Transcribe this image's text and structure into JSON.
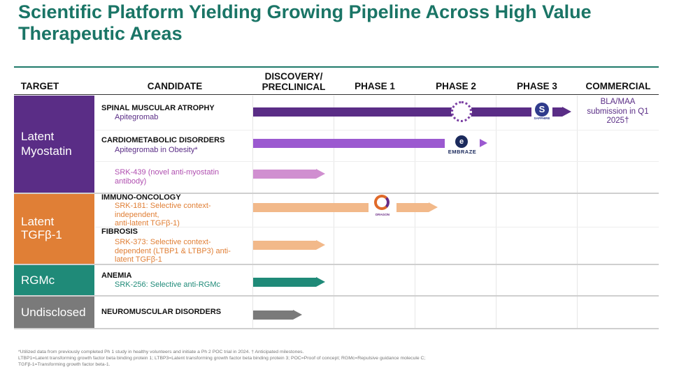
{
  "title": "Scientific Platform Yielding Growing Pipeline Across High Value Therapeutic Areas",
  "headers": {
    "target": "TARGET",
    "candidate": "CANDIDATE",
    "discovery_line1": "DISCOVERY/",
    "discovery_line2": "PRECLINICAL",
    "phase1": "PHASE 1",
    "phase2": "PHASE 2",
    "phase3": "PHASE 3",
    "commercial": "COMMERCIAL"
  },
  "targets": {
    "myostatin_line1": "Latent",
    "myostatin_line2": "Myostatin",
    "tgfb_line1": "Latent",
    "tgfb_line2": "TGFβ-1",
    "rgmc": "RGMc",
    "undisclosed": "Undisclosed"
  },
  "rows": {
    "sma": {
      "disease": "SPINAL MUSCULAR ATROPHY",
      "candidate": "Apitegromab"
    },
    "cardio": {
      "disease": "CARDIOMETABOLIC DISORDERS",
      "candidate": "Apitegromab in Obesity*"
    },
    "srk439": {
      "line1": "SRK-439 (novel anti-myostatin",
      "line2": "antibody)"
    },
    "immuno": {
      "disease": "IMMUNO-ONCOLOGY",
      "line1": "SRK-181:  Selective context-",
      "line2": "independent,",
      "line3": "anti-latent TGFβ-1)"
    },
    "fibrosis": {
      "disease": "FIBROSIS",
      "line1": "SRK-373: Selective context-",
      "line2": "dependent (LTBP1 & LTBP3) anti-",
      "line3": "latent TGFβ-1"
    },
    "anemia": {
      "disease": "ANEMIA",
      "candidate": "SRK-256: Selective anti-RGMc"
    },
    "neuro": {
      "disease": "NEUROMUSCULAR DISORDERS"
    }
  },
  "commercial": {
    "line1": "BLA/MAA",
    "line2": "submission in Q1",
    "line3": "2025†"
  },
  "badges": {
    "sapphire": "SAPPHIRE",
    "embraze": "EMBRAZE",
    "dragon": "DRAGON"
  },
  "footnote": {
    "line1": "*Utilized data from previously completed Ph 1 study in healthy volunteers and initiate a Ph 2 POC trial in 2024. † Anticipated milestones.",
    "line2": "LTBP1=Latent transforming growth factor beta binding protein 1; LTBP3=Latent transforming growth factor beta binding protein 3; POC=Proof of concept; RGMc=Repulsive guidance molecule C;",
    "line3": "TGFβ-1=Transforming growth factor beta-1."
  },
  "colors": {
    "title": "#1a7566",
    "myostatin": "#5a2d86",
    "cardio_bar": "#9b59d0",
    "srk439_bar": "#d08fd0",
    "tgfb": "#e07f36",
    "tgfb_bar": "#f2b98a",
    "rgmc": "#1f8a78",
    "undisclosed": "#7a7a7a"
  }
}
